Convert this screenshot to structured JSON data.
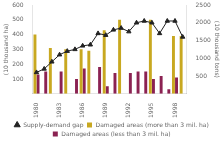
{
  "chart_data": {
    "type": "bar",
    "categories": [
      "1980",
      null,
      null,
      "1983",
      null,
      null,
      "1986",
      null,
      null,
      "1989",
      null,
      null,
      "1992",
      null,
      null,
      "1995",
      null,
      null,
      "1998",
      null
    ],
    "series": [
      {
        "name": "Damaged areas (more than 3 mil. ha)",
        "color": "#C8A820",
        "values": [
          400,
          0,
          310,
          0,
          300,
          0,
          300,
          290,
          0,
          430,
          0,
          500,
          0,
          0,
          0,
          500,
          0,
          0,
          390,
          390
        ]
      },
      {
        "name": "Damaged areas (less than 3 mil. ha)",
        "color": "#8B2252",
        "values": [
          130,
          150,
          0,
          150,
          0,
          100,
          170,
          0,
          180,
          50,
          140,
          0,
          140,
          150,
          150,
          100,
          120,
          30,
          110,
          0
        ]
      },
      {
        "name": "Supply-demand gap",
        "type": "line",
        "axis": "y2",
        "color": "#222222",
        "marker": "triangle",
        "values": [
          600,
          700,
          900,
          1100,
          1200,
          1250,
          1350,
          1380,
          1700,
          1650,
          1800,
          1850,
          1750,
          2000,
          2050,
          2000,
          1700,
          2050,
          2050,
          1600
        ]
      }
    ],
    "ylabel": "(10 thousand ha)",
    "y2label": "(10 thousand tons)",
    "ylim": [
      0,
      600
    ],
    "yticks": [
      100,
      200,
      300,
      400,
      500,
      600
    ],
    "y2lim": [
      0,
      2500
    ],
    "y2ticks": [
      500,
      1000,
      1500,
      2000,
      2500
    ],
    "grid": false,
    "legend": "bottom"
  }
}
